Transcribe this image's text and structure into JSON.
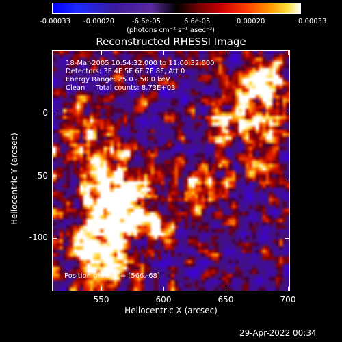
{
  "colorbar": {
    "ticks": [
      "-0.00033",
      "-0.00020",
      "-6.6e-05",
      "6.6e-05",
      "0.00020",
      "0.00033"
    ],
    "unit": "(photons cm⁻² s⁻¹ asec⁻²)"
  },
  "title": "Reconstructed RHESSI Image",
  "info": {
    "line1": "18-Mar-2005 10:54:32.000 to 11:00:32.000",
    "line2": "Detectors: 3F 4F 5F 6F 7F 8F, Att 0",
    "line3": "Energy Range: 25.0 - 50.0 keV",
    "line4": "Clean     Total counts: 8.73E+03"
  },
  "peak_text": "Position of Peak = [566,-68]",
  "x_axis": {
    "label": "Heliocentric X (arcsec)",
    "ticks": [
      "550",
      "600",
      "650",
      "700"
    ]
  },
  "y_axis": {
    "label": "Heliocentric Y (arcsec)",
    "ticks": [
      "0",
      "-50",
      "-100"
    ]
  },
  "timestamp": "29-Apr-2022 00:34"
}
